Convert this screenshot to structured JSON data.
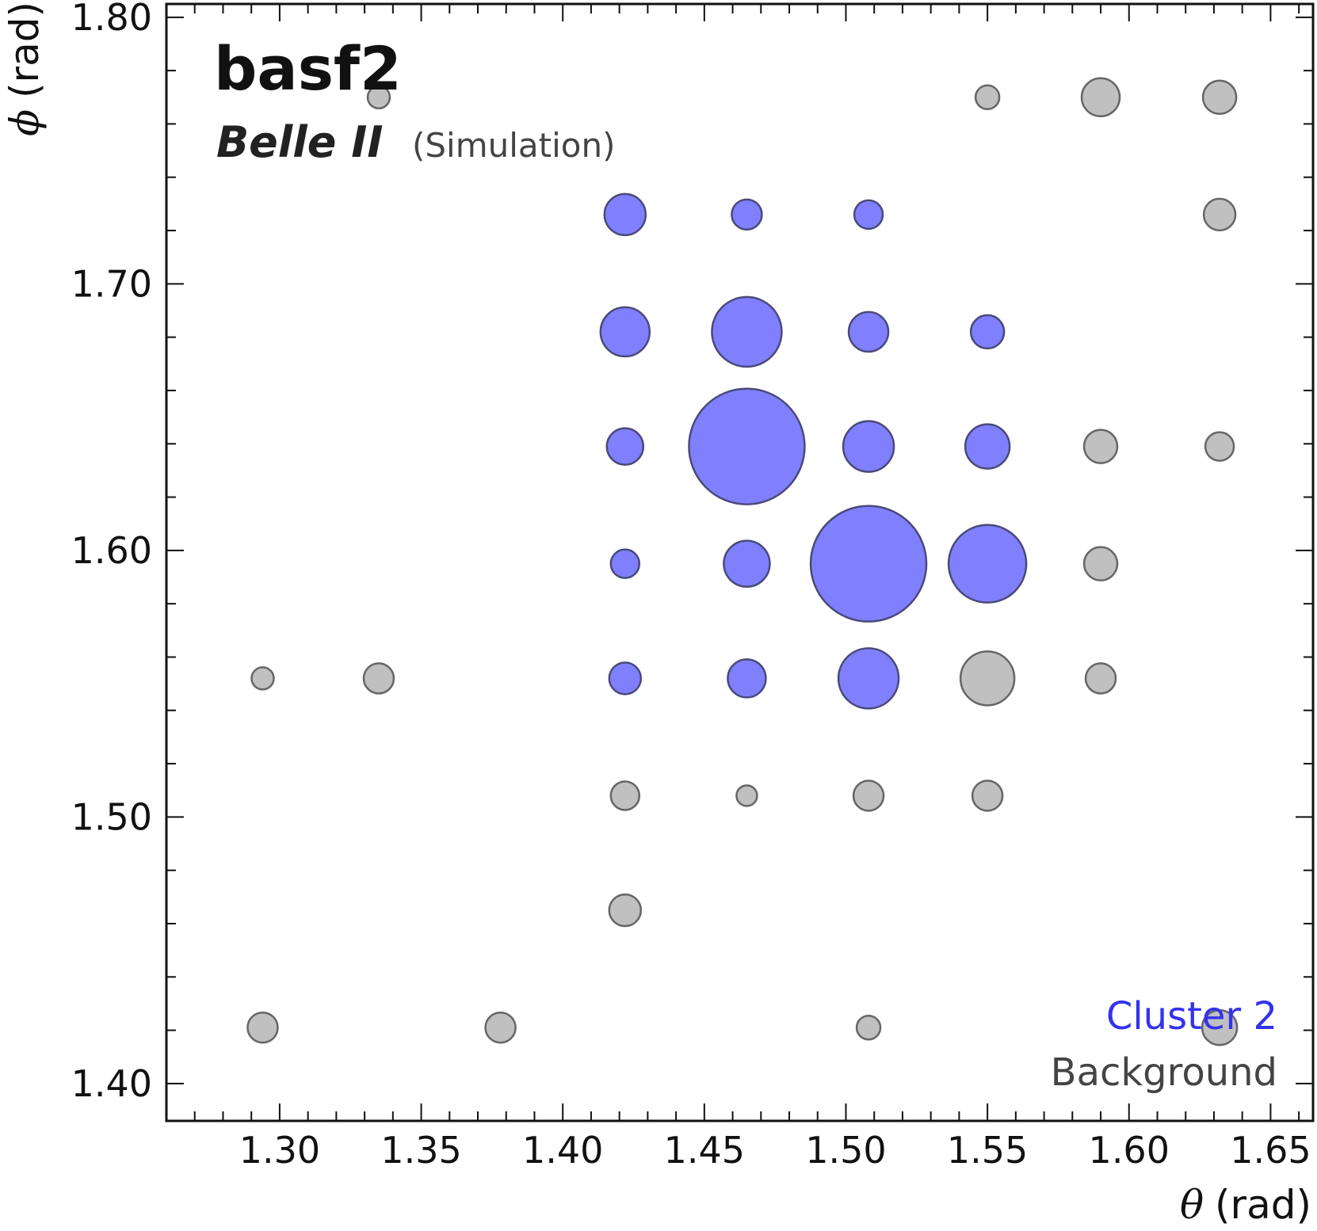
{
  "chart_data": {
    "type": "scatter",
    "xlabel": {
      "symbol": "θ",
      "unit": "(rad)"
    },
    "ylabel": {
      "symbol": "ϕ",
      "unit": "(rad)"
    },
    "xlim": [
      1.26,
      1.665
    ],
    "ylim": [
      1.386,
      1.805
    ],
    "xticks": [
      "1.30",
      "1.35",
      "1.40",
      "1.45",
      "1.50",
      "1.55",
      "1.60",
      "1.65"
    ],
    "yticks": [
      "1.40",
      "1.50",
      "1.60",
      "1.70",
      "1.80"
    ],
    "annotations": {
      "software": "basf2",
      "experiment": "Belle II",
      "status": "(Simulation)"
    },
    "legend_placement": "bottom-right",
    "series": [
      {
        "name": "Cluster 2",
        "color": "#8080ff",
        "text_color": "#3333ee",
        "points": [
          {
            "x": 1.422,
            "y": 1.726,
            "r": 26
          },
          {
            "x": 1.465,
            "y": 1.726,
            "r": 19
          },
          {
            "x": 1.508,
            "y": 1.726,
            "r": 18
          },
          {
            "x": 1.422,
            "y": 1.682,
            "r": 31
          },
          {
            "x": 1.465,
            "y": 1.682,
            "r": 44
          },
          {
            "x": 1.508,
            "y": 1.682,
            "r": 25
          },
          {
            "x": 1.55,
            "y": 1.682,
            "r": 21
          },
          {
            "x": 1.422,
            "y": 1.639,
            "r": 23
          },
          {
            "x": 1.465,
            "y": 1.639,
            "r": 73
          },
          {
            "x": 1.508,
            "y": 1.639,
            "r": 32
          },
          {
            "x": 1.55,
            "y": 1.639,
            "r": 28
          },
          {
            "x": 1.422,
            "y": 1.595,
            "r": 18
          },
          {
            "x": 1.465,
            "y": 1.595,
            "r": 29
          },
          {
            "x": 1.508,
            "y": 1.595,
            "r": 73
          },
          {
            "x": 1.55,
            "y": 1.595,
            "r": 49
          },
          {
            "x": 1.422,
            "y": 1.552,
            "r": 20
          },
          {
            "x": 1.465,
            "y": 1.552,
            "r": 24
          },
          {
            "x": 1.508,
            "y": 1.552,
            "r": 38
          }
        ]
      },
      {
        "name": "Background",
        "color": "#c0c0c0",
        "text_color": "#444444",
        "points": [
          {
            "x": 1.335,
            "y": 1.77,
            "r": 14
          },
          {
            "x": 1.55,
            "y": 1.77,
            "r": 15
          },
          {
            "x": 1.59,
            "y": 1.77,
            "r": 24
          },
          {
            "x": 1.632,
            "y": 1.77,
            "r": 21
          },
          {
            "x": 1.632,
            "y": 1.726,
            "r": 20
          },
          {
            "x": 1.59,
            "y": 1.639,
            "r": 21
          },
          {
            "x": 1.632,
            "y": 1.639,
            "r": 18
          },
          {
            "x": 1.59,
            "y": 1.595,
            "r": 21
          },
          {
            "x": 1.294,
            "y": 1.552,
            "r": 14
          },
          {
            "x": 1.335,
            "y": 1.552,
            "r": 19
          },
          {
            "x": 1.55,
            "y": 1.552,
            "r": 34
          },
          {
            "x": 1.59,
            "y": 1.552,
            "r": 19
          },
          {
            "x": 1.422,
            "y": 1.508,
            "r": 18
          },
          {
            "x": 1.465,
            "y": 1.508,
            "r": 13
          },
          {
            "x": 1.508,
            "y": 1.508,
            "r": 19
          },
          {
            "x": 1.55,
            "y": 1.508,
            "r": 19
          },
          {
            "x": 1.422,
            "y": 1.465,
            "r": 20
          },
          {
            "x": 1.294,
            "y": 1.421,
            "r": 19
          },
          {
            "x": 1.378,
            "y": 1.421,
            "r": 19
          },
          {
            "x": 1.508,
            "y": 1.421,
            "r": 15
          },
          {
            "x": 1.632,
            "y": 1.421,
            "r": 22
          }
        ]
      }
    ]
  }
}
